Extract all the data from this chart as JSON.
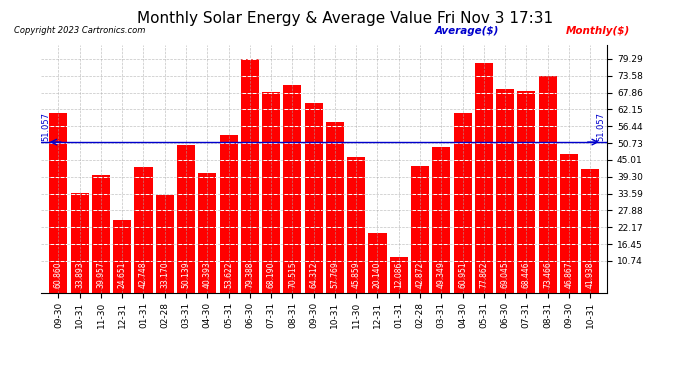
{
  "title": "Monthly Solar Energy & Average Value Fri Nov 3 17:31",
  "copyright": "Copyright 2023 Cartronics.com",
  "legend_average": "Average($)",
  "legend_monthly": "Monthly($)",
  "average_value": 51.057,
  "categories": [
    "09-30",
    "10-31",
    "11-30",
    "12-31",
    "01-31",
    "02-28",
    "03-31",
    "04-30",
    "05-31",
    "06-30",
    "07-31",
    "08-31",
    "09-30",
    "10-31",
    "11-30",
    "12-31",
    "01-31",
    "02-28",
    "03-31",
    "04-30",
    "05-31",
    "06-30",
    "07-31",
    "08-31",
    "09-30",
    "10-31"
  ],
  "values": [
    60.86,
    33.893,
    39.957,
    24.651,
    42.748,
    33.17,
    50.139,
    40.393,
    53.622,
    79.388,
    68.19,
    70.515,
    64.312,
    57.769,
    45.859,
    20.14,
    12.086,
    42.872,
    49.349,
    60.951,
    77.862,
    69.045,
    68.446,
    73.466,
    46.867,
    41.938
  ],
  "bar_color": "#ff0000",
  "average_line_color": "#0000cc",
  "background_color": "#ffffff",
  "grid_color": "#aaaaaa",
  "title_color": "#000000",
  "copyright_color": "#000000",
  "bar_value_color": "#ffffff",
  "yticks": [
    10.74,
    16.45,
    22.17,
    27.88,
    33.59,
    39.3,
    45.01,
    50.73,
    56.44,
    62.15,
    67.86,
    73.58,
    79.29
  ],
  "ylim": [
    0,
    84
  ],
  "title_fontsize": 11,
  "tick_fontsize": 6.5,
  "value_fontsize": 5.5
}
